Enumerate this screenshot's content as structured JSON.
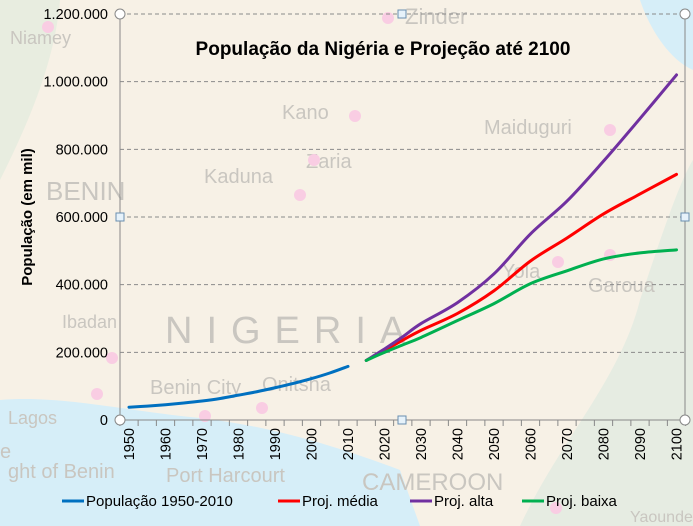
{
  "map_labels": [
    "Zinder",
    "Niamey",
    "BENIN",
    "Kano",
    "Maiduguri",
    "Zaria",
    "Kaduna",
    "NIGERIA",
    "Ibadan",
    "Lagos",
    "Onitsha",
    "Yola",
    "Garoua",
    "Benin City",
    "Port Harcourt",
    "ght of Benin",
    "CAMEROON",
    "Yaounde",
    "e"
  ],
  "chart_data": {
    "type": "line",
    "title": "População da Nigéria e Projeção até 2100",
    "xlabel": "",
    "ylabel": "População (em mil)",
    "ylim": [
      0,
      1200000
    ],
    "yticks": [
      "0",
      "200.000",
      "400.000",
      "600.000",
      "800.000",
      "1.000.000",
      "1.200.000"
    ],
    "xticks": [
      "1950",
      "1960",
      "1970",
      "1980",
      "1990",
      "2000",
      "2010",
      "2020",
      "2030",
      "2040",
      "2050",
      "2060",
      "2070",
      "2080",
      "2090",
      "2100"
    ],
    "grid": "horizontal dashed",
    "legend": "bottom",
    "series": [
      {
        "name": "População 1950-2010",
        "color": "#0070c0",
        "x": [
          1950,
          1955,
          1960,
          1965,
          1970,
          1975,
          1980,
          1985,
          1990,
          1995,
          2000,
          2005,
          2010
        ],
        "y": [
          37860,
          41120,
          45210,
          50240,
          56130,
          63570,
          73420,
          83560,
          95270,
          108000,
          122350,
          138940,
          158420
        ]
      },
      {
        "name": "Proj. média",
        "color": "#ff0000",
        "x": [
          2015,
          2020,
          2025,
          2030,
          2040,
          2050,
          2060,
          2070,
          2080,
          2090,
          2100
        ],
        "y": [
          176000,
          206000,
          236000,
          265000,
          315000,
          382000,
          470000,
          538000,
          609000,
          668000,
          726000
        ]
      },
      {
        "name": "Proj. alta",
        "color": "#7030a0",
        "x": [
          2015,
          2020,
          2025,
          2030,
          2040,
          2050,
          2060,
          2070,
          2080,
          2090,
          2100
        ],
        "y": [
          176000,
          210000,
          246000,
          285000,
          347000,
          432000,
          550000,
          647000,
          765000,
          891000,
          1020000
        ]
      },
      {
        "name": "Proj. baixa",
        "color": "#00b050",
        "x": [
          2015,
          2020,
          2025,
          2030,
          2040,
          2050,
          2060,
          2070,
          2080,
          2090,
          2100
        ],
        "y": [
          176000,
          200000,
          222000,
          244000,
          294000,
          344000,
          403000,
          441000,
          476000,
          494000,
          503000
        ]
      }
    ]
  }
}
